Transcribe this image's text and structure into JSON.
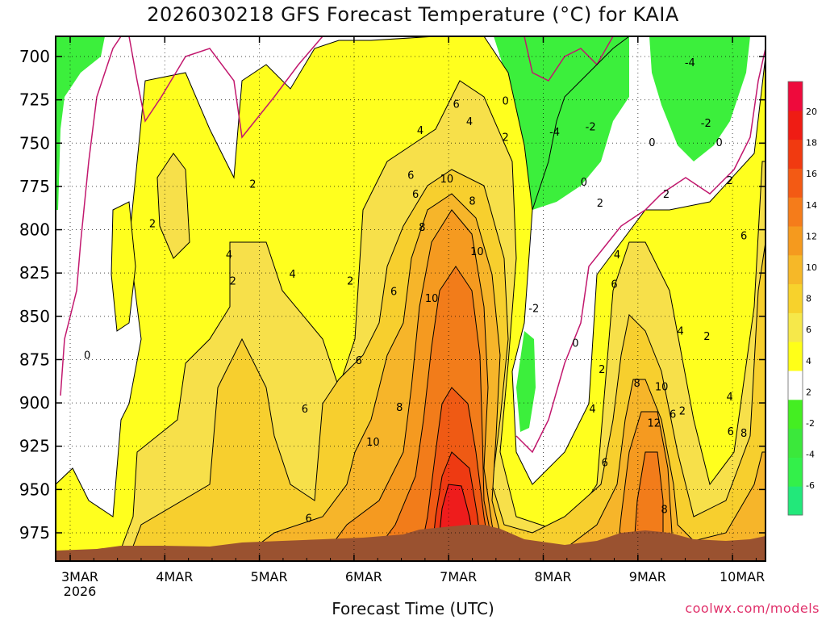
{
  "chart_data": {
    "type": "heatmap",
    "title": "2026030218 GFS Forecast Temperature (°C) for KAIA",
    "xlabel": "Forecast Time (UTC)",
    "ylabel": "",
    "credit": "coolwx.com/models",
    "y_axis": {
      "unit": "hPa",
      "direction": "pressure decreasing upward",
      "range": [
        990,
        688
      ],
      "ticks": [
        700,
        725,
        750,
        775,
        800,
        825,
        850,
        875,
        900,
        925,
        950,
        975
      ]
    },
    "x_axis": {
      "range_days": [
        "2026-03-02T18:00Z",
        "2026-03-10T06:00Z"
      ],
      "ticks": [
        {
          "label": "3MAR",
          "sublabel": "2026",
          "day": 3
        },
        {
          "label": "4MAR",
          "day": 4
        },
        {
          "label": "5MAR",
          "day": 5
        },
        {
          "label": "6MAR",
          "day": 6
        },
        {
          "label": "7MAR",
          "day": 7
        },
        {
          "label": "8MAR",
          "day": 8
        },
        {
          "label": "9MAR",
          "day": 9
        },
        {
          "label": "10MAR",
          "day": 10
        }
      ]
    },
    "colorbar": {
      "levels": [
        {
          "label": "",
          "color": "#22e87a"
        },
        {
          "label": "-6",
          "color": "#33f04a"
        },
        {
          "label": "",
          "color": "#3be83b"
        },
        {
          "label": "-4",
          "color": "#44ee22"
        },
        {
          "label": "-2",
          "color": "#ffffff"
        },
        {
          "label": "2",
          "color": "#ffff18"
        },
        {
          "label": "4",
          "color": "#f6e84a"
        },
        {
          "label": "6",
          "color": "#f7d22c"
        },
        {
          "label": "8",
          "color": "#f6b828"
        },
        {
          "label": "10",
          "color": "#f59a1e"
        },
        {
          "label": "12",
          "color": "#f57c1a"
        },
        {
          "label": "14",
          "color": "#f35a14"
        },
        {
          "label": "16",
          "color": "#f13a10"
        },
        {
          "label": "18",
          "color": "#ef1c14"
        },
        {
          "label": "20",
          "color": "#ee0a3c"
        }
      ],
      "tick_labels": [
        "20",
        "18",
        "16",
        "14",
        "12",
        "10",
        "8",
        "6",
        "4",
        "2",
        "-2",
        "-4",
        "-6"
      ]
    },
    "grid": true,
    "terrain_color": "#9a5230",
    "contour_labels": [
      {
        "text": "0",
        "day": 7.6,
        "p": 726
      },
      {
        "text": "6",
        "day": 7.08,
        "p": 728
      },
      {
        "text": "4",
        "day": 7.22,
        "p": 738
      },
      {
        "text": "4",
        "day": 6.7,
        "p": 743
      },
      {
        "text": "-4",
        "day": 8.12,
        "p": 744
      },
      {
        "text": "-2",
        "day": 8.5,
        "p": 741
      },
      {
        "text": "-2",
        "day": 9.72,
        "p": 739
      },
      {
        "text": "-4",
        "day": 9.55,
        "p": 704
      },
      {
        "text": "2",
        "day": 7.6,
        "p": 747
      },
      {
        "text": "0",
        "day": 9.15,
        "p": 750
      },
      {
        "text": "0",
        "day": 9.86,
        "p": 750
      },
      {
        "text": "6",
        "day": 6.6,
        "p": 769
      },
      {
        "text": "10",
        "day": 6.98,
        "p": 771
      },
      {
        "text": "0",
        "day": 8.43,
        "p": 773
      },
      {
        "text": "2",
        "day": 4.93,
        "p": 774
      },
      {
        "text": "6",
        "day": 6.65,
        "p": 780
      },
      {
        "text": "2",
        "day": 9.3,
        "p": 780
      },
      {
        "text": "2",
        "day": 9.97,
        "p": 772
      },
      {
        "text": "8",
        "day": 7.25,
        "p": 784
      },
      {
        "text": "2",
        "day": 8.6,
        "p": 785
      },
      {
        "text": "2",
        "day": 3.87,
        "p": 797
      },
      {
        "text": "8",
        "day": 6.72,
        "p": 799
      },
      {
        "text": "6",
        "day": 10.12,
        "p": 804
      },
      {
        "text": "4",
        "day": 4.68,
        "p": 815
      },
      {
        "text": "10",
        "day": 7.3,
        "p": 813
      },
      {
        "text": "4",
        "day": 8.78,
        "p": 815
      },
      {
        "text": "4",
        "day": 5.35,
        "p": 826
      },
      {
        "text": "2",
        "day": 4.72,
        "p": 830
      },
      {
        "text": "2",
        "day": 5.96,
        "p": 830
      },
      {
        "text": "6",
        "day": 8.75,
        "p": 832
      },
      {
        "text": "6",
        "day": 6.42,
        "p": 836
      },
      {
        "text": "-2",
        "day": 7.9,
        "p": 846
      },
      {
        "text": "10",
        "day": 6.82,
        "p": 840
      },
      {
        "text": "4",
        "day": 9.45,
        "p": 859
      },
      {
        "text": "2",
        "day": 9.73,
        "p": 862
      },
      {
        "text": "0",
        "day": 3.18,
        "p": 873
      },
      {
        "text": "0",
        "day": 8.34,
        "p": 866
      },
      {
        "text": "6",
        "day": 6.05,
        "p": 876
      },
      {
        "text": "2",
        "day": 8.62,
        "p": 881
      },
      {
        "text": "8",
        "day": 8.99,
        "p": 889
      },
      {
        "text": "10",
        "day": 9.25,
        "p": 891
      },
      {
        "text": "4",
        "day": 9.97,
        "p": 897
      },
      {
        "text": "8",
        "day": 6.48,
        "p": 903
      },
      {
        "text": "6",
        "day": 5.48,
        "p": 904
      },
      {
        "text": "4",
        "day": 8.52,
        "p": 904
      },
      {
        "text": "6",
        "day": 9.37,
        "p": 907
      },
      {
        "text": "2",
        "day": 9.47,
        "p": 905
      },
      {
        "text": "12",
        "day": 9.17,
        "p": 912
      },
      {
        "text": "6",
        "day": 9.98,
        "p": 917
      },
      {
        "text": "8",
        "day": 10.12,
        "p": 918
      },
      {
        "text": "10",
        "day": 6.2,
        "p": 923
      },
      {
        "text": "6",
        "day": 8.65,
        "p": 935
      },
      {
        "text": "8",
        "day": 9.28,
        "p": 962
      },
      {
        "text": "6",
        "day": 5.52,
        "p": 967
      }
    ]
  }
}
